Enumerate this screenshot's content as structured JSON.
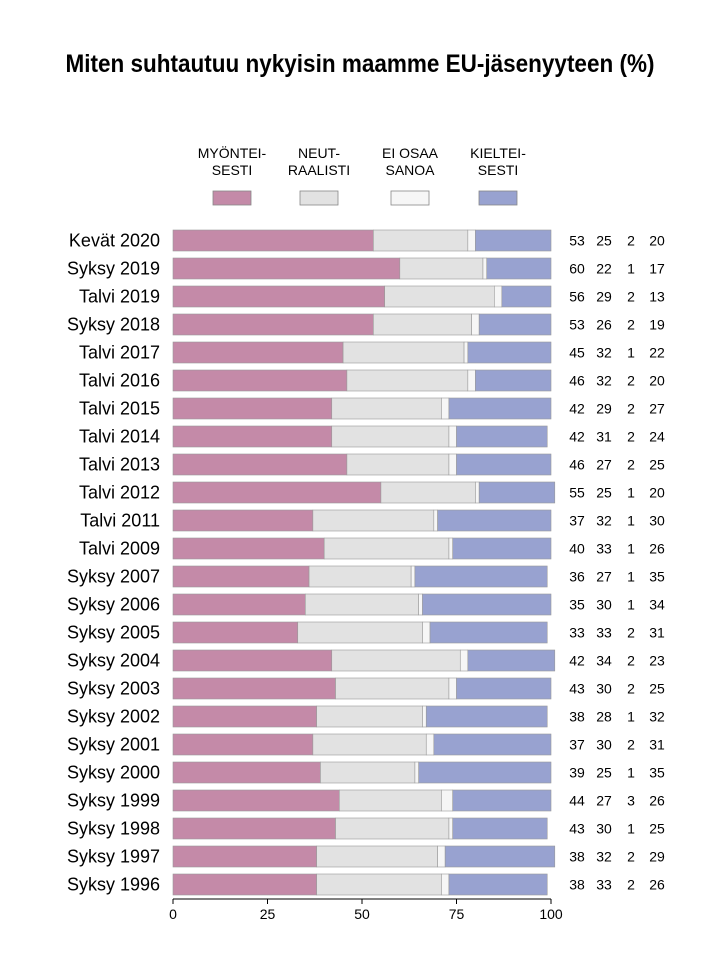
{
  "chart_data": {
    "type": "bar",
    "orientation": "horizontal",
    "stacked": true,
    "title": "Miten suhtautuu nykyisin maamme EU-jäsenyyteen (%)",
    "xlim": [
      0,
      100
    ],
    "xticks": [
      "0",
      "25",
      "50",
      "75",
      "100"
    ],
    "grid": false,
    "legend_position": "top",
    "categories": [
      "Kevät 2020",
      "Syksy 2019",
      "Talvi 2019",
      "Syksy 2018",
      "Talvi 2017",
      "Talvi 2016",
      "Talvi 2015",
      "Talvi 2014",
      "Talvi 2013",
      "Talvi 2012",
      "Talvi 2011",
      "Talvi 2009",
      "Syksy 2007",
      "Syksy 2006",
      "Syksy 2005",
      "Syksy 2004",
      "Syksy 2003",
      "Syksy 2002",
      "Syksy 2001",
      "Syksy 2000",
      "Syksy 1999",
      "Syksy 1998",
      "Syksy 1997",
      "Syksy 1996"
    ],
    "series": [
      {
        "name_lines": [
          "MYÖNTEI-",
          "SESTI"
        ],
        "color": "#c48aa8",
        "values": [
          53,
          60,
          56,
          53,
          45,
          46,
          42,
          42,
          46,
          55,
          37,
          40,
          36,
          35,
          33,
          42,
          43,
          38,
          37,
          39,
          44,
          43,
          38,
          38
        ]
      },
      {
        "name_lines": [
          "NEUT-",
          "RAALISTI"
        ],
        "color": "#e2e2e2",
        "values": [
          25,
          22,
          29,
          26,
          32,
          32,
          29,
          31,
          27,
          25,
          32,
          33,
          27,
          30,
          33,
          34,
          30,
          28,
          30,
          25,
          27,
          30,
          32,
          33
        ]
      },
      {
        "name_lines": [
          "EI OSAA",
          "SANOA"
        ],
        "color": "#f6f6f6",
        "values": [
          2,
          1,
          2,
          2,
          1,
          2,
          2,
          2,
          2,
          1,
          1,
          1,
          1,
          1,
          2,
          2,
          2,
          1,
          2,
          1,
          3,
          1,
          2,
          2
        ]
      },
      {
        "name_lines": [
          "KIELTEI-",
          "SESTI"
        ],
        "color": "#98a2d0",
        "values": [
          20,
          17,
          13,
          19,
          22,
          20,
          27,
          24,
          25,
          20,
          30,
          26,
          35,
          34,
          31,
          23,
          25,
          32,
          31,
          35,
          26,
          25,
          29,
          26
        ]
      }
    ]
  }
}
